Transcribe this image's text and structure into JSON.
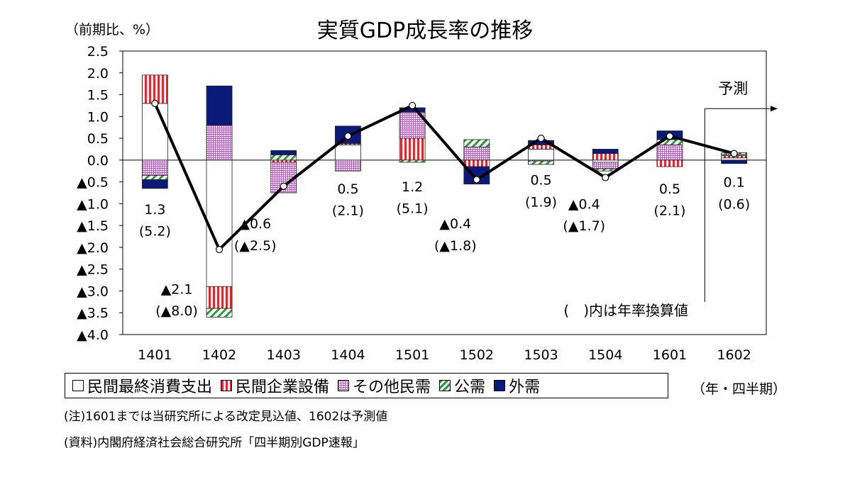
{
  "chart_data": {
    "type": "bar",
    "title": "実質GDP成長率の推移",
    "ylabel": "（前期比、%）",
    "xlabel": "（年・四半期）",
    "ylim": [
      -4.0,
      2.5
    ],
    "yticks": [
      2.5,
      2.0,
      1.5,
      1.0,
      0.5,
      0.0,
      -0.5,
      -1.0,
      -1.5,
      -2.0,
      -2.5,
      -3.0,
      -3.5,
      -4.0
    ],
    "ytick_labels": [
      "2.5",
      "2.0",
      "1.5",
      "1.0",
      "0.5",
      "0.0",
      "▲0.5",
      "▲1.0",
      "▲1.5",
      "▲2.0",
      "▲2.5",
      "▲3.0",
      "▲3.5",
      "▲4.0"
    ],
    "categories": [
      "1401",
      "1402",
      "1403",
      "1404",
      "1501",
      "1502",
      "1503",
      "1504",
      "1601",
      "1602"
    ],
    "series": [
      {
        "name": "民間最終消費支出",
        "kind": "bar",
        "fill": "white",
        "values": [
          1.3,
          -2.9,
          0.0,
          0.35,
          0.0,
          0.0,
          0.25,
          -0.05,
          0.0,
          0.05
        ]
      },
      {
        "name": "民間企業設備",
        "kind": "bar",
        "fill": "red-stripe",
        "values": [
          0.65,
          -0.5,
          -0.05,
          0.03,
          0.5,
          -0.15,
          0.1,
          0.15,
          -0.15,
          0.05
        ]
      },
      {
        "name": "その他民需",
        "kind": "bar",
        "fill": "purple-check",
        "values": [
          -0.35,
          0.8,
          -0.7,
          -0.25,
          0.6,
          0.3,
          -0.02,
          -0.15,
          0.35,
          0.03
        ]
      },
      {
        "name": "公需",
        "kind": "bar",
        "fill": "green-diag",
        "values": [
          -0.1,
          -0.2,
          0.12,
          0.0,
          -0.05,
          0.17,
          -0.08,
          -0.05,
          0.12,
          0.04
        ]
      },
      {
        "name": "外需",
        "kind": "bar",
        "fill": "navy",
        "values": [
          -0.2,
          0.9,
          0.1,
          0.4,
          0.1,
          -0.4,
          0.1,
          0.1,
          0.2,
          -0.08
        ]
      },
      {
        "name": "実質GDP",
        "kind": "line",
        "values": [
          1.3,
          -2.05,
          -0.6,
          0.55,
          1.25,
          -0.45,
          0.5,
          -0.4,
          0.55,
          0.15
        ]
      }
    ],
    "annotations": [
      {
        "category": "1401",
        "line1": "1.3",
        "line2": "(5.2)"
      },
      {
        "category": "1402",
        "line1": "▲2.1",
        "line2": "(▲8.0)"
      },
      {
        "category": "1403",
        "line1": "▲0.6",
        "line2": "(▲2.5)"
      },
      {
        "category": "1404",
        "line1": "0.5",
        "line2": "(2.1)"
      },
      {
        "category": "1501",
        "line1": "1.2",
        "line2": "(5.1)"
      },
      {
        "category": "1502",
        "line1": "▲0.4",
        "line2": "(▲1.8)"
      },
      {
        "category": "1503",
        "line1": "0.5",
        "line2": "(1.9)"
      },
      {
        "category": "1504",
        "line1": "▲0.4",
        "line2": "(▲1.7)"
      },
      {
        "category": "1601",
        "line1": "0.5",
        "line2": "(2.1)"
      },
      {
        "category": "1602",
        "line1": "0.1",
        "line2": "(0.6)"
      }
    ],
    "forecast_label": "予測",
    "forecast_start": "1602",
    "inner_note": "(　)内は年率換算値",
    "colors": {
      "red": "#e8262d",
      "purple": "#b85ec4",
      "green": "#2e9a3a",
      "navy": "#0a1a7a",
      "line": "#000000"
    }
  },
  "notes": [
    "(注)1601までは当研究所による改定見込値、1602は予測値",
    "(資料)内閣府経済社会総合研究所「四半期別GDP速報」"
  ]
}
